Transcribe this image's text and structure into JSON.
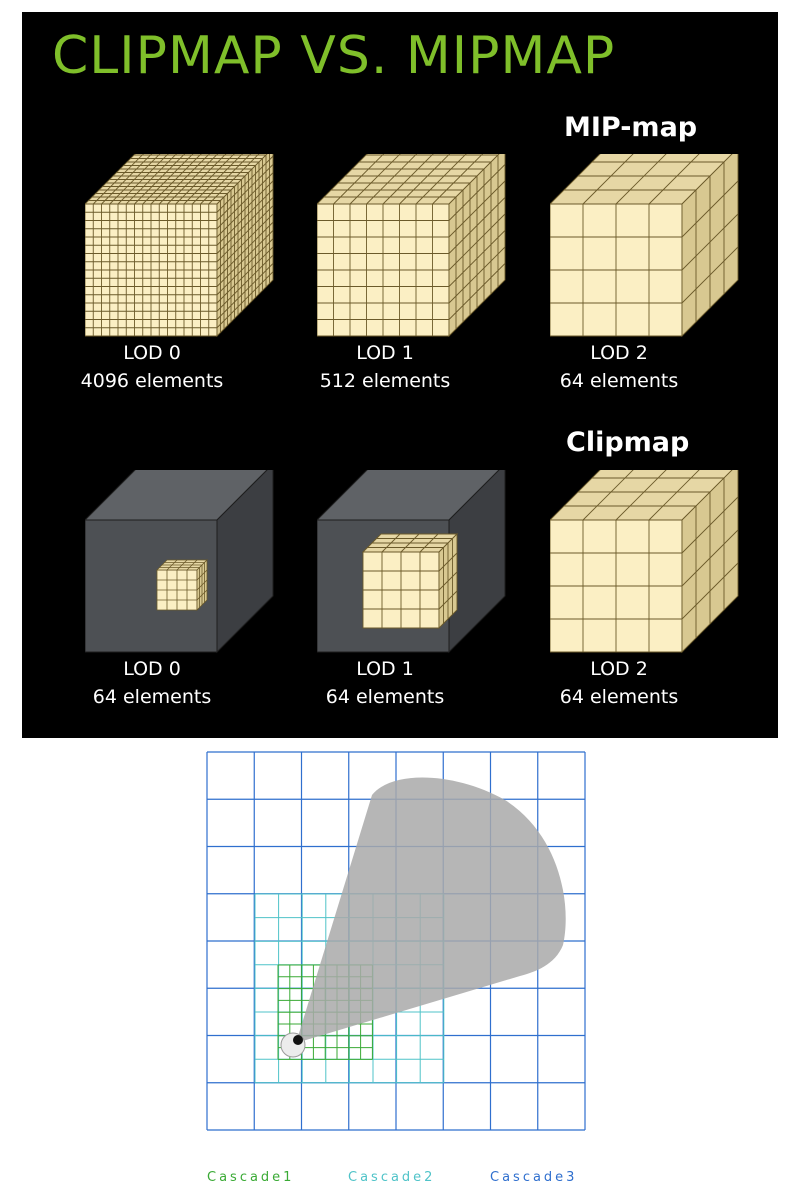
{
  "slide": {
    "title": "CLIPMAP VS. MIPMAP",
    "title_color": "#7fbf2a",
    "mipmap": {
      "label": "MIP-map",
      "cubes": [
        {
          "lod": "LOD 0",
          "elements": "4096 elements",
          "grid_divisions": 16
        },
        {
          "lod": "LOD 1",
          "elements": "512 elements",
          "grid_divisions": 8
        },
        {
          "lod": "LOD 2",
          "elements": "64 elements",
          "grid_divisions": 4
        }
      ]
    },
    "clipmap": {
      "label": "Clipmap",
      "cubes": [
        {
          "lod": "LOD 0",
          "elements": "64 elements",
          "grid_divisions": 4
        },
        {
          "lod": "LOD 1",
          "elements": "64 elements",
          "grid_divisions": 4
        },
        {
          "lod": "LOD 2",
          "elements": "64 elements",
          "grid_divisions": 4
        }
      ]
    },
    "colors": {
      "cube_face": "#fbefc4",
      "cube_top": "#e6d7a5",
      "cube_side": "#d8c891",
      "grid_line": "#6b5a2a",
      "dark_cube": "#4d5054"
    }
  },
  "cascade_diagram": {
    "legend": [
      {
        "name": "Cascade1",
        "color": "#3aaa35"
      },
      {
        "name": "Cascade2",
        "color": "#4fc3c8"
      },
      {
        "name": "Cascade3",
        "color": "#2f6fce"
      }
    ],
    "view_frustum_color": "#a9a9a9"
  }
}
